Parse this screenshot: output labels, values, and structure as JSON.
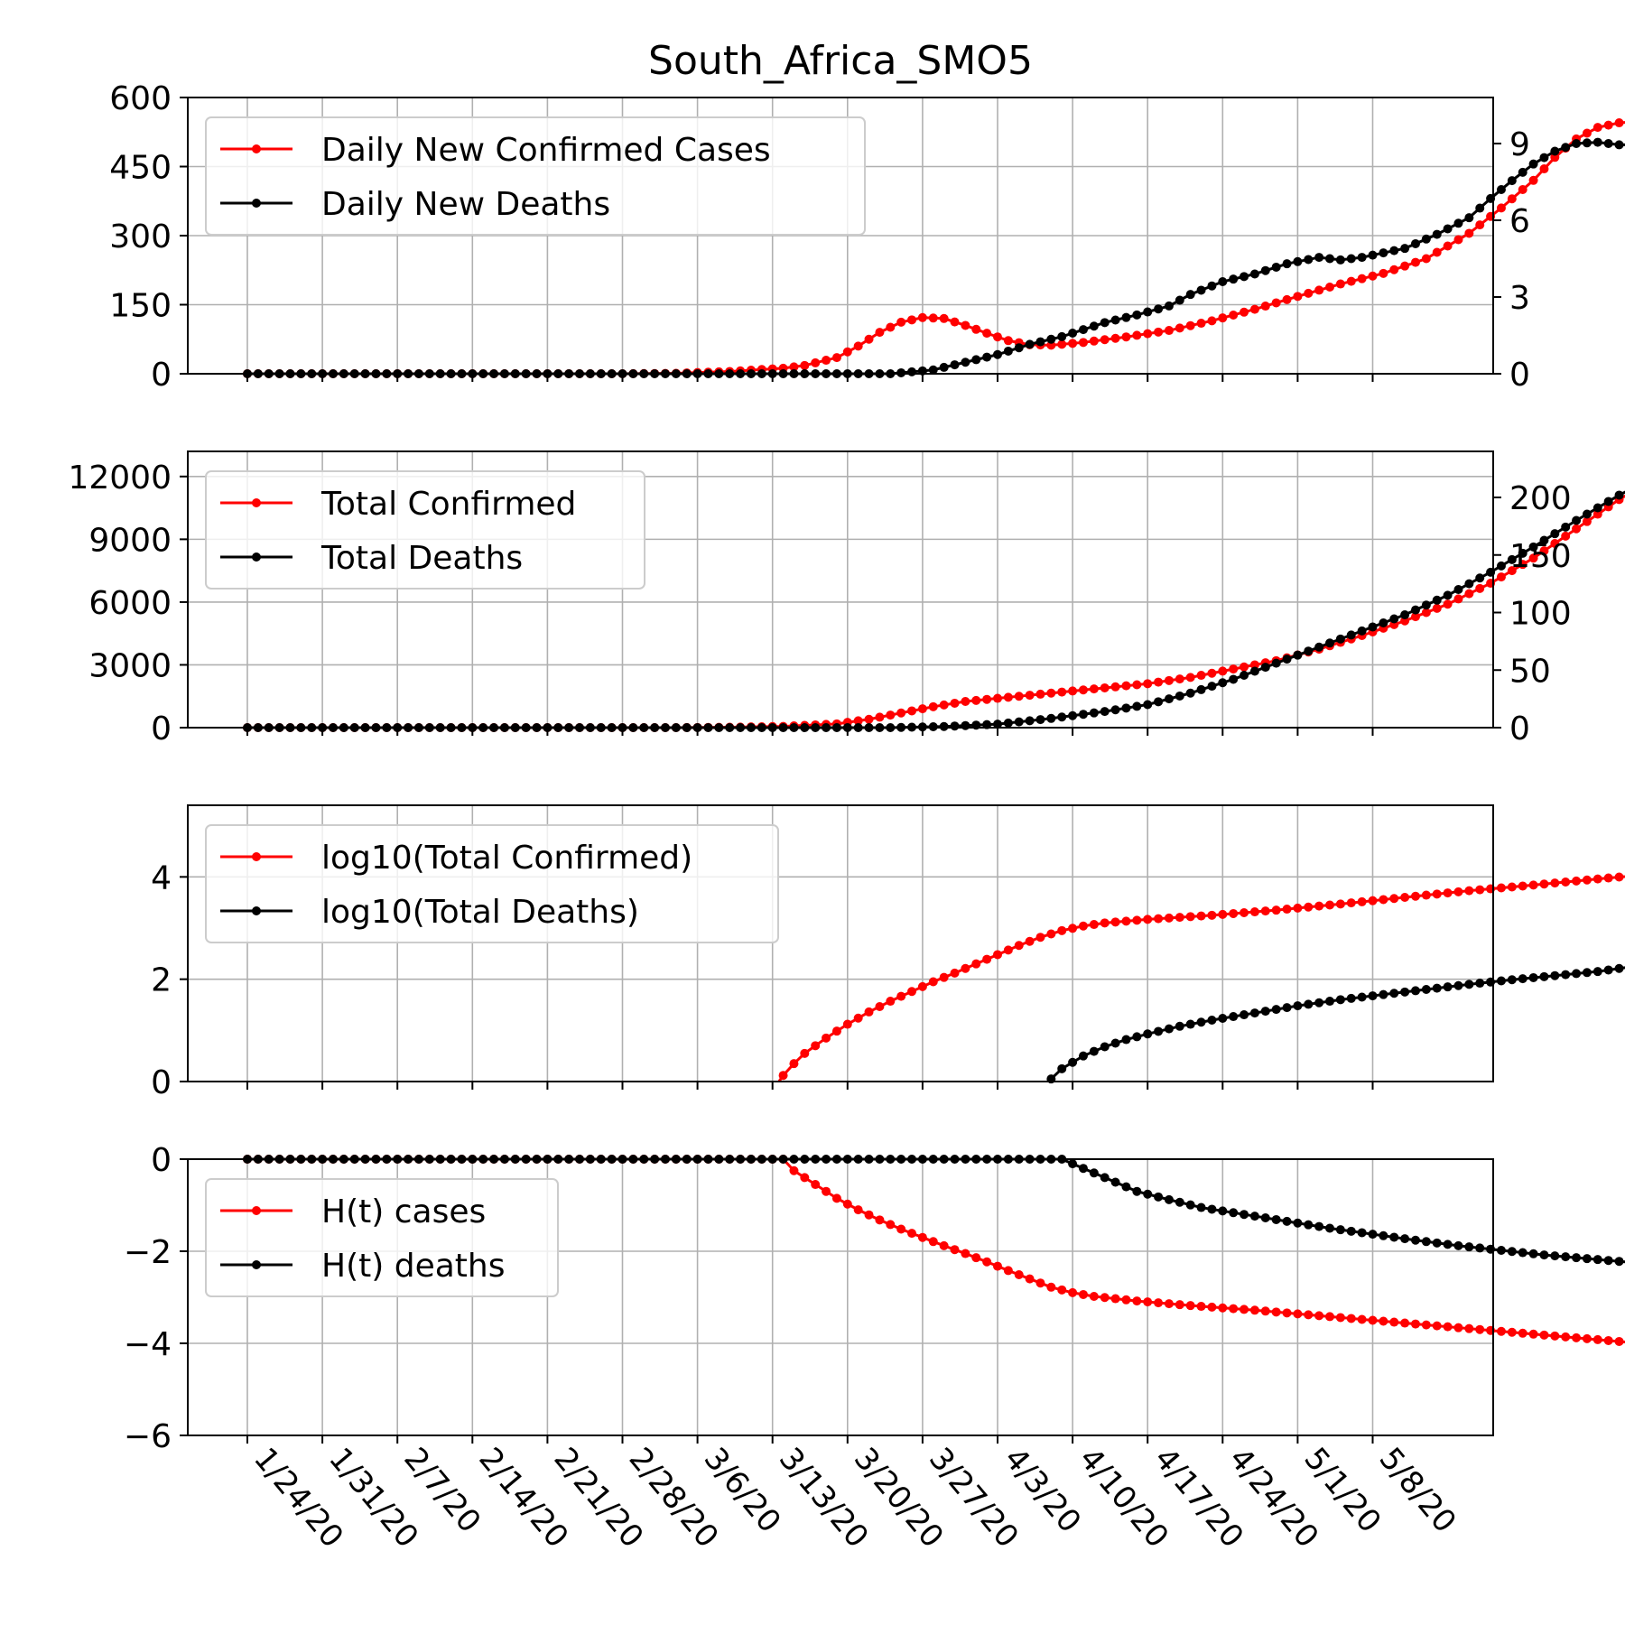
{
  "chart_data": {
    "type": "line",
    "title": "South_Africa_SMO5",
    "x_tick_labels": [
      "1/24/20",
      "1/31/20",
      "2/7/20",
      "2/14/20",
      "2/21/20",
      "2/28/20",
      "3/6/20",
      "3/13/20",
      "3/20/20",
      "3/27/20",
      "4/3/20",
      "4/10/20",
      "4/17/20",
      "4/24/20",
      "5/1/20",
      "5/8/20"
    ],
    "panels": [
      {
        "id": "daily",
        "left_axis": {
          "ylim": [
            0,
            600
          ],
          "ticks": [
            0,
            150,
            300,
            450,
            600
          ]
        },
        "right_axis": {
          "ylim": [
            0,
            10.8
          ],
          "ticks": [
            0,
            3,
            6,
            9
          ]
        },
        "grid": true,
        "legend_position": "upper left",
        "series": [
          {
            "name": "Daily New Confirmed Cases",
            "color": "#ff0000",
            "axis": "left",
            "points": [
              [
                0,
                0
              ],
              [
                35,
                0
              ],
              [
                40,
                1
              ],
              [
                45,
                5
              ],
              [
                50,
                12
              ],
              [
                52,
                18
              ],
              [
                55,
                35
              ],
              [
                57,
                60
              ],
              [
                59,
                90
              ],
              [
                61,
                112
              ],
              [
                63,
                122
              ],
              [
                65,
                120
              ],
              [
                67,
                105
              ],
              [
                69,
                88
              ],
              [
                71,
                72
              ],
              [
                73,
                63
              ],
              [
                75,
                62
              ],
              [
                78,
                68
              ],
              [
                82,
                80
              ],
              [
                86,
                94
              ],
              [
                90,
                115
              ],
              [
                94,
                140
              ],
              [
                98,
                168
              ],
              [
                102,
                195
              ],
              [
                106,
                218
              ],
              [
                110,
                250
              ],
              [
                114,
                305
              ],
              [
                117,
                360
              ],
              [
                120,
                420
              ],
              [
                122,
                470
              ],
              [
                124,
                510
              ],
              [
                126,
                535
              ],
              [
                128,
                545
              ],
              [
                130,
                548
              ],
              [
                132,
                550
              ]
            ]
          },
          {
            "name": "Daily New Deaths",
            "color": "#000000",
            "axis": "right",
            "points": [
              [
                0,
                0
              ],
              [
                60,
                0
              ],
              [
                64,
                0.15
              ],
              [
                67,
                0.45
              ],
              [
                70,
                0.75
              ],
              [
                73,
                1.15
              ],
              [
                76,
                1.45
              ],
              [
                80,
                2.0
              ],
              [
                83,
                2.3
              ],
              [
                86,
                2.65
              ],
              [
                88,
                3.1
              ],
              [
                91,
                3.6
              ],
              [
                94,
                3.9
              ],
              [
                97,
                4.3
              ],
              [
                100,
                4.55
              ],
              [
                102,
                4.45
              ],
              [
                104,
                4.55
              ],
              [
                108,
                4.9
              ],
              [
                111,
                5.45
              ],
              [
                114,
                6.1
              ],
              [
                116,
                6.85
              ],
              [
                118,
                7.55
              ],
              [
                120,
                8.2
              ],
              [
                122,
                8.7
              ],
              [
                124,
                9.0
              ],
              [
                126,
                9.05
              ],
              [
                128,
                8.95
              ],
              [
                130,
                8.95
              ],
              [
                132,
                9.0
              ]
            ]
          }
        ]
      },
      {
        "id": "total",
        "left_axis": {
          "ylim": [
            0,
            13200
          ],
          "ticks": [
            0,
            3000,
            6000,
            9000,
            12000
          ]
        },
        "right_axis": {
          "ylim": [
            0,
            240
          ],
          "ticks": [
            0,
            50,
            100,
            150,
            200
          ]
        },
        "grid": true,
        "legend_position": "upper left",
        "series": [
          {
            "name": "Total Confirmed",
            "color": "#ff0000",
            "axis": "left",
            "points": [
              [
                0,
                0
              ],
              [
                40,
                0
              ],
              [
                45,
                20
              ],
              [
                50,
                60
              ],
              [
                55,
                180
              ],
              [
                58,
                400
              ],
              [
                61,
                700
              ],
              [
                64,
                1000
              ],
              [
                67,
                1250
              ],
              [
                70,
                1400
              ],
              [
                73,
                1550
              ],
              [
                76,
                1700
              ],
              [
                80,
                1900
              ],
              [
                84,
                2100
              ],
              [
                88,
                2400
              ],
              [
                92,
                2800
              ],
              [
                96,
                3200
              ],
              [
                100,
                3750
              ],
              [
                104,
                4400
              ],
              [
                108,
                5100
              ],
              [
                112,
                5900
              ],
              [
                116,
                6900
              ],
              [
                120,
                8100
              ],
              [
                124,
                9500
              ],
              [
                128,
                10900
              ],
              [
                132,
                12100
              ]
            ]
          },
          {
            "name": "Total Deaths",
            "color": "#000000",
            "axis": "right",
            "points": [
              [
                0,
                0
              ],
              [
                60,
                0
              ],
              [
                65,
                1
              ],
              [
                70,
                3
              ],
              [
                75,
                8
              ],
              [
                80,
                14
              ],
              [
                84,
                20
              ],
              [
                88,
                30
              ],
              [
                92,
                42
              ],
              [
                96,
                56
              ],
              [
                100,
                70
              ],
              [
                104,
                84
              ],
              [
                108,
                98
              ],
              [
                112,
                115
              ],
              [
                116,
                135
              ],
              [
                120,
                157
              ],
              [
                124,
                180
              ],
              [
                128,
                202
              ],
              [
                132,
                221
              ]
            ]
          }
        ]
      },
      {
        "id": "log",
        "left_axis": {
          "ylim": [
            0,
            5.4
          ],
          "ticks": [
            0,
            2,
            4
          ]
        },
        "grid": true,
        "legend_position": "upper left",
        "series": [
          {
            "name": "log10(Total Confirmed)",
            "color": "#ff0000",
            "axis": "left",
            "points": [
              [
                49.6,
                0
              ],
              [
                50,
                0.12
              ],
              [
                51,
                0.35
              ],
              [
                52,
                0.55
              ],
              [
                54,
                0.85
              ],
              [
                56,
                1.12
              ],
              [
                58,
                1.36
              ],
              [
                60,
                1.57
              ],
              [
                62,
                1.76
              ],
              [
                64,
                1.95
              ],
              [
                66,
                2.12
              ],
              [
                68,
                2.3
              ],
              [
                70,
                2.48
              ],
              [
                72,
                2.66
              ],
              [
                74,
                2.82
              ],
              [
                76,
                2.95
              ],
              [
                78,
                3.04
              ],
              [
                80,
                3.1
              ],
              [
                84,
                3.17
              ],
              [
                90,
                3.25
              ],
              [
                96,
                3.35
              ],
              [
                102,
                3.47
              ],
              [
                108,
                3.6
              ],
              [
                114,
                3.73
              ],
              [
                120,
                3.84
              ],
              [
                126,
                3.96
              ],
              [
                132,
                4.07
              ]
            ]
          },
          {
            "name": "log10(Total Deaths)",
            "color": "#000000",
            "axis": "left",
            "points": [
              [
                74.8,
                0
              ],
              [
                75,
                0.05
              ],
              [
                76,
                0.25
              ],
              [
                78,
                0.5
              ],
              [
                80,
                0.68
              ],
              [
                82,
                0.82
              ],
              [
                84,
                0.93
              ],
              [
                87,
                1.08
              ],
              [
                90,
                1.2
              ],
              [
                94,
                1.34
              ],
              [
                98,
                1.48
              ],
              [
                102,
                1.6
              ],
              [
                106,
                1.7
              ],
              [
                110,
                1.8
              ],
              [
                114,
                1.9
              ],
              [
                118,
                1.99
              ],
              [
                122,
                2.07
              ],
              [
                126,
                2.15
              ],
              [
                129,
                2.24
              ],
              [
                132,
                2.34
              ]
            ]
          }
        ]
      },
      {
        "id": "hazard",
        "left_axis": {
          "ylim": [
            -6,
            0
          ],
          "ticks": [
            0,
            -2,
            -4,
            -6
          ]
        },
        "grid": true,
        "legend_position": "upper left",
        "series": [
          {
            "name": "H(t) cases",
            "color": "#ff0000",
            "axis": "left",
            "points": [
              [
                0,
                0
              ],
              [
                50,
                0
              ],
              [
                51,
                -0.25
              ],
              [
                53,
                -0.55
              ],
              [
                55,
                -0.85
              ],
              [
                57,
                -1.1
              ],
              [
                59,
                -1.32
              ],
              [
                61,
                -1.52
              ],
              [
                63,
                -1.7
              ],
              [
                65,
                -1.88
              ],
              [
                67,
                -2.05
              ],
              [
                69,
                -2.23
              ],
              [
                71,
                -2.42
              ],
              [
                73,
                -2.6
              ],
              [
                75,
                -2.78
              ],
              [
                77,
                -2.9
              ],
              [
                79,
                -2.98
              ],
              [
                83,
                -3.08
              ],
              [
                88,
                -3.18
              ],
              [
                94,
                -3.28
              ],
              [
                100,
                -3.4
              ],
              [
                106,
                -3.52
              ],
              [
                112,
                -3.64
              ],
              [
                118,
                -3.76
              ],
              [
                124,
                -3.88
              ],
              [
                130,
                -4.0
              ],
              [
                131,
                -4.02
              ]
            ]
          },
          {
            "name": "H(t) deaths",
            "color": "#000000",
            "axis": "left",
            "points": [
              [
                0,
                0
              ],
              [
                68,
                0
              ],
              [
                76,
                0
              ],
              [
                77,
                -0.1
              ],
              [
                79,
                -0.3
              ],
              [
                81,
                -0.5
              ],
              [
                83,
                -0.7
              ],
              [
                86,
                -0.88
              ],
              [
                89,
                -1.05
              ],
              [
                93,
                -1.2
              ],
              [
                97,
                -1.35
              ],
              [
                101,
                -1.5
              ],
              [
                105,
                -1.63
              ],
              [
                109,
                -1.76
              ],
              [
                113,
                -1.88
              ],
              [
                117,
                -1.98
              ],
              [
                121,
                -2.08
              ],
              [
                125,
                -2.16
              ],
              [
                129,
                -2.24
              ],
              [
                131,
                -2.28
              ]
            ]
          }
        ]
      }
    ]
  }
}
